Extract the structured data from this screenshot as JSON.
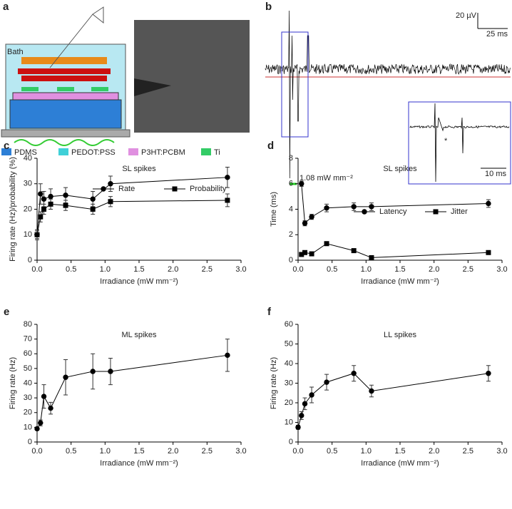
{
  "panel_a": {
    "label": "a",
    "bath": "Bath",
    "legend": [
      "PDMS",
      "PEDOT:PSS",
      "P3HT:PCBM",
      "Ti"
    ]
  },
  "panel_b": {
    "label": "b",
    "scale_v": "20 µV",
    "scale_t": "25 ms",
    "inset_scale": "10 ms",
    "irradiance": "1.08 mW mm⁻²",
    "asterisk": "*"
  },
  "chart_data": [
    {
      "type": "line",
      "panel": "c",
      "title": "SL spikes",
      "xlabel": "Irradiance (mW mm⁻²)",
      "ylabel": "Firing rate (Hz)/probability (%)",
      "xlim": [
        0,
        3
      ],
      "xticks": [
        {
          "value": 0,
          "label": "0.0"
        },
        {
          "value": 0.5,
          "label": "0.5"
        },
        {
          "value": 1,
          "label": "1.0"
        },
        {
          "value": 1.5,
          "label": "1.5"
        },
        {
          "value": 2,
          "label": "2.0"
        },
        {
          "value": 2.5,
          "label": "2.5"
        },
        {
          "value": 3,
          "label": "3.0"
        }
      ],
      "ylim": [
        0,
        40
      ],
      "yticks": [
        0,
        10,
        20,
        30,
        40
      ],
      "series": [
        {
          "name": "Rate",
          "color": "#000",
          "marker": "circle",
          "x": [
            0,
            0.05,
            0.1,
            0.2,
            0.42,
            0.82,
            1.08,
            2.8
          ],
          "values": [
            10,
            26,
            24,
            25,
            25.5,
            24,
            30,
            32.5
          ],
          "errors": [
            2,
            4,
            3,
            3,
            3,
            3,
            3,
            4
          ]
        },
        {
          "name": "Probability",
          "color": "#000",
          "marker": "square",
          "x": [
            0,
            0.05,
            0.1,
            0.2,
            0.42,
            0.82,
            1.08,
            2.8
          ],
          "values": [
            10,
            17,
            20,
            22,
            21.5,
            20,
            23,
            23.5
          ],
          "errors": [
            1.5,
            2,
            2,
            2,
            2,
            2,
            2,
            2.5
          ]
        }
      ]
    },
    {
      "type": "line",
      "panel": "d",
      "title": "SL spikes",
      "xlabel": "Irradiance (mW mm⁻²)",
      "ylabel": "Time (ms)",
      "xlim": [
        0,
        3
      ],
      "xticks": [
        {
          "value": 0,
          "label": "0.0"
        },
        {
          "value": 0.5,
          "label": "0.5"
        },
        {
          "value": 1,
          "label": "1.0"
        },
        {
          "value": 1.5,
          "label": "1.5"
        },
        {
          "value": 2,
          "label": "2.0"
        },
        {
          "value": 2.5,
          "label": "2.5"
        },
        {
          "value": 3,
          "label": "3.0"
        }
      ],
      "ylim": [
        0,
        8
      ],
      "yticks": [
        0,
        2,
        4,
        6,
        8
      ],
      "series": [
        {
          "name": "Latency",
          "color": "#000",
          "marker": "circle",
          "x": [
            0.05,
            0.1,
            0.2,
            0.42,
            0.82,
            1.08,
            2.8
          ],
          "values": [
            6,
            2.9,
            3.4,
            4.1,
            4.2,
            4.2,
            4.45
          ],
          "errors": [
            0.2,
            0.2,
            0.2,
            0.3,
            0.3,
            0.3,
            0.3
          ]
        },
        {
          "name": "Jitter",
          "color": "#000",
          "marker": "square",
          "x": [
            0.05,
            0.1,
            0.2,
            0.42,
            0.82,
            1.08,
            2.8
          ],
          "values": [
            0.45,
            0.6,
            0.5,
            1.3,
            0.75,
            0.2,
            0.6
          ],
          "errors": [
            0.1,
            0.1,
            0.1,
            0.1,
            0.1,
            0.1,
            0.1
          ]
        }
      ]
    },
    {
      "type": "line",
      "panel": "e",
      "title": "ML spikes",
      "xlabel": "Irradiance (mW mm⁻²)",
      "ylabel": "Firing rate (Hz)",
      "xlim": [
        0,
        3
      ],
      "xticks": [
        {
          "value": 0,
          "label": "0.0"
        },
        {
          "value": 0.5,
          "label": "0.5"
        },
        {
          "value": 1,
          "label": "1.0"
        },
        {
          "value": 1.5,
          "label": "1.5"
        },
        {
          "value": 2,
          "label": "2.0"
        },
        {
          "value": 2.5,
          "label": "2.5"
        },
        {
          "value": 3,
          "label": "3.0"
        }
      ],
      "ylim": [
        0,
        80
      ],
      "yticks": [
        0,
        10,
        20,
        30,
        40,
        50,
        60,
        70,
        80
      ],
      "series": [
        {
          "color": "#000",
          "marker": "circle",
          "x": [
            0,
            0.05,
            0.1,
            0.2,
            0.42,
            0.82,
            1.08,
            2.8
          ],
          "values": [
            9,
            13,
            31,
            23,
            44,
            48,
            48,
            59
          ],
          "errors": [
            1,
            2,
            8,
            4,
            12,
            12,
            9,
            11
          ]
        }
      ]
    },
    {
      "type": "line",
      "panel": "f",
      "title": "LL spikes",
      "xlabel": "Irradiance (mW mm⁻²)",
      "ylabel": "Firing rate (Hz)",
      "xlim": [
        0,
        3
      ],
      "xticks": [
        {
          "value": 0,
          "label": "0.0"
        },
        {
          "value": 0.5,
          "label": "0.5"
        },
        {
          "value": 1,
          "label": "1.0"
        },
        {
          "value": 1.5,
          "label": "1.5"
        },
        {
          "value": 2,
          "label": "2.0"
        },
        {
          "value": 2.5,
          "label": "2.5"
        },
        {
          "value": 3,
          "label": "3.0"
        }
      ],
      "ylim": [
        0,
        60
      ],
      "yticks": [
        0,
        10,
        20,
        30,
        40,
        50,
        60
      ],
      "series": [
        {
          "color": "#000",
          "marker": "circle",
          "x": [
            0,
            0.05,
            0.1,
            0.2,
            0.42,
            0.82,
            1.08,
            2.8
          ],
          "values": [
            7.5,
            13.5,
            19.5,
            24,
            30.5,
            35,
            26,
            35
          ],
          "errors": [
            1,
            2,
            3,
            4,
            4,
            4,
            3,
            4
          ]
        }
      ]
    }
  ]
}
